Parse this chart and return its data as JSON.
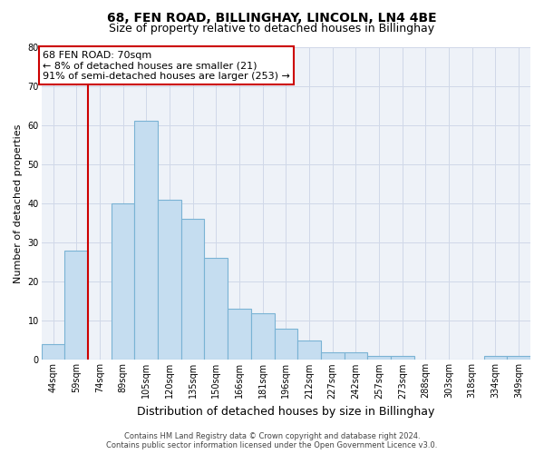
{
  "title": "68, FEN ROAD, BILLINGHAY, LINCOLN, LN4 4BE",
  "subtitle": "Size of property relative to detached houses in Billinghay",
  "xlabel": "Distribution of detached houses by size in Billinghay",
  "ylabel": "Number of detached properties",
  "categories": [
    "44sqm",
    "59sqm",
    "74sqm",
    "89sqm",
    "105sqm",
    "120sqm",
    "135sqm",
    "150sqm",
    "166sqm",
    "181sqm",
    "196sqm",
    "212sqm",
    "227sqm",
    "242sqm",
    "257sqm",
    "273sqm",
    "288sqm",
    "303sqm",
    "318sqm",
    "334sqm",
    "349sqm"
  ],
  "values": [
    4,
    28,
    0,
    40,
    61,
    41,
    36,
    26,
    13,
    12,
    8,
    5,
    2,
    2,
    1,
    1,
    0,
    0,
    0,
    1,
    1
  ],
  "bar_color": "#c5ddf0",
  "bar_edge_color": "#7ab3d4",
  "marker_line_color": "#cc0000",
  "annotation_box_edge_color": "#cc0000",
  "annotation_box_face_color": "#ffffff",
  "ylim": [
    0,
    80
  ],
  "yticks": [
    0,
    10,
    20,
    30,
    40,
    50,
    60,
    70,
    80
  ],
  "grid_color": "#d0d8e8",
  "background_color": "#ffffff",
  "plot_bg_color": "#eef2f8",
  "title_fontsize": 10,
  "subtitle_fontsize": 9,
  "xlabel_fontsize": 9,
  "ylabel_fontsize": 8,
  "tick_fontsize": 7,
  "annot_fontsize": 8,
  "footer_fontsize": 6
}
